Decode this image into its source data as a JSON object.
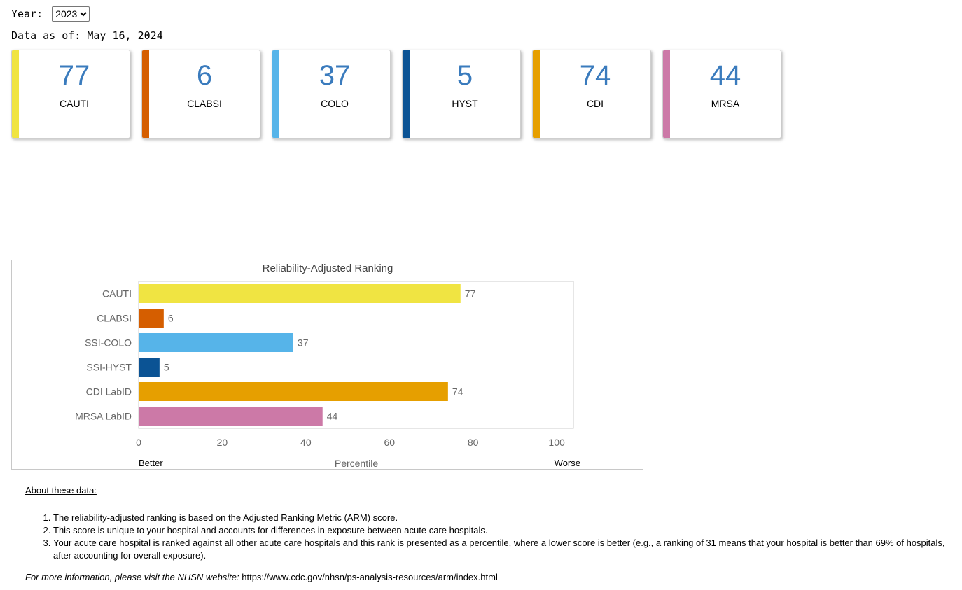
{
  "filters": {
    "year_label": "Year:",
    "year_selected": "2023",
    "year_options": [
      "2023"
    ]
  },
  "data_as_of": "Data as of: May 16, 2024",
  "cards": [
    {
      "value": "77",
      "label": "CAUTI",
      "color": "#f0e442"
    },
    {
      "value": "6",
      "label": "CLABSI",
      "color": "#d55e00"
    },
    {
      "value": "37",
      "label": "COLO",
      "color": "#56b4e9"
    },
    {
      "value": "5",
      "label": "HYST",
      "color": "#0b5394"
    },
    {
      "value": "74",
      "label": "CDI",
      "color": "#e69f00"
    },
    {
      "value": "44",
      "label": "MRSA",
      "color": "#cc79a7"
    }
  ],
  "chart_data": {
    "type": "bar",
    "orientation": "horizontal",
    "title": "Reliability-Adjusted Ranking",
    "xlabel": "Percentile",
    "x_left_label": "Better",
    "x_right_label": "Worse",
    "categories": [
      "CAUTI",
      "CLABSI",
      "SSI-COLO",
      "SSI-HYST",
      "CDI LabID",
      "MRSA LabID"
    ],
    "values": [
      77,
      6,
      37,
      5,
      74,
      44
    ],
    "colors": [
      "#f0e442",
      "#d55e00",
      "#56b4e9",
      "#0b5394",
      "#e69f00",
      "#cc79a7"
    ],
    "xlim": [
      0,
      104
    ],
    "xticks": [
      0,
      20,
      40,
      60,
      80,
      100
    ],
    "grid": false,
    "data_labels": true
  },
  "about": {
    "heading": "About these data:",
    "notes": [
      "The reliability-adjusted ranking is based on the Adjusted Ranking Metric (ARM) score.",
      "This score is unique to your hospital and accounts for differences in exposure between acute care hospitals.",
      "Your acute care hospital is ranked against all other acute care hospitals and this rank is presented as a percentile, where a lower score is better (e.g., a ranking of 31 means that your hospital is better than 69% of hospitals, after accounting for overall exposure)."
    ],
    "more_info_label": "For more information, please visit the NHSN website:",
    "more_info_url": "https://www.cdc.gov/nhsn/ps-analysis-resources/arm/index.html"
  }
}
